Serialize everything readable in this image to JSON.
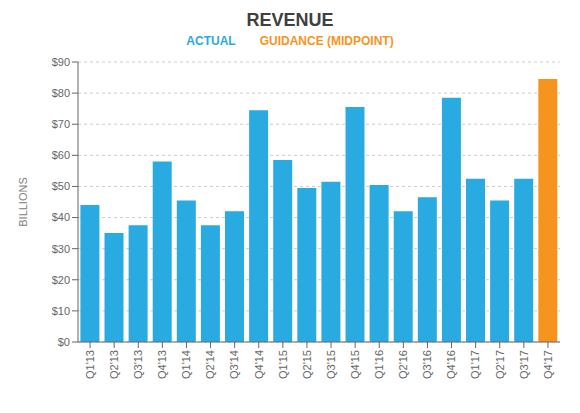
{
  "chart_data": {
    "type": "bar",
    "title": "REVENUE",
    "ylabel": "BILLIONS",
    "categories": [
      "Q1'13",
      "Q2'13",
      "Q3'13",
      "Q4'13",
      "Q1'14",
      "Q2'14",
      "Q3'14",
      "Q4'14",
      "Q1'15",
      "Q2'15",
      "Q3'15",
      "Q4'15",
      "Q1'16",
      "Q2'16",
      "Q3'16",
      "Q4'16",
      "Q1'17",
      "Q2'17",
      "Q3'17",
      "Q4'17"
    ],
    "values": [
      44,
      35,
      37.5,
      58,
      45.5,
      37.5,
      42,
      74.5,
      58.5,
      49.5,
      51.5,
      75.5,
      50.5,
      42,
      46.5,
      78.5,
      52.5,
      45.5,
      52.5,
      84.5
    ],
    "colors": [
      "#29ABE2",
      "#29ABE2",
      "#29ABE2",
      "#29ABE2",
      "#29ABE2",
      "#29ABE2",
      "#29ABE2",
      "#29ABE2",
      "#29ABE2",
      "#29ABE2",
      "#29ABE2",
      "#29ABE2",
      "#29ABE2",
      "#29ABE2",
      "#29ABE2",
      "#29ABE2",
      "#29ABE2",
      "#29ABE2",
      "#29ABE2",
      "#F7941D"
    ],
    "annotations": [
      {
        "text": "ACTUAL",
        "color": "#29ABE2"
      },
      {
        "text": "GUIDANCE (MIDPOINT)",
        "color": "#F7941D"
      }
    ],
    "ylim": [
      0,
      90
    ],
    "yticks": [
      {
        "value": 0,
        "label": "$0"
      },
      {
        "value": 10,
        "label": "$10"
      },
      {
        "value": 20,
        "label": "$20"
      },
      {
        "value": 30,
        "label": "$30"
      },
      {
        "value": 40,
        "label": "$40"
      },
      {
        "value": 50,
        "label": "$50"
      },
      {
        "value": 60,
        "label": "$60"
      },
      {
        "value": 70,
        "label": "$70"
      },
      {
        "value": 80,
        "label": "$80"
      },
      {
        "value": 90,
        "label": "$90"
      }
    ],
    "grid": true
  }
}
